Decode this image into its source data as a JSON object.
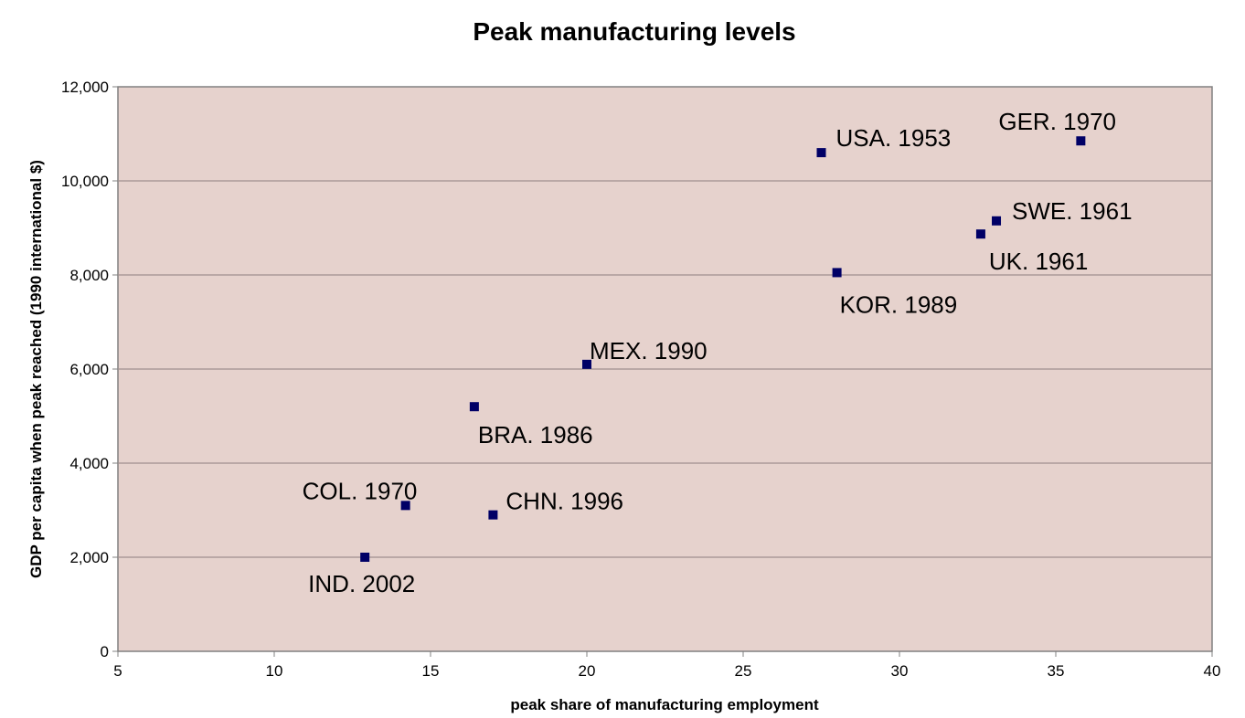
{
  "chart_data": {
    "type": "scatter",
    "title": "Peak manufacturing levels",
    "xlabel": "peak share of manufacturing employment",
    "ylabel": "GDP per capita when peak reached (1990 international $)",
    "xlim": [
      5,
      40
    ],
    "ylim": [
      0,
      12000
    ],
    "x_ticks": [
      "5",
      "10",
      "15",
      "20",
      "25",
      "30",
      "35",
      "40"
    ],
    "y_ticks": [
      "0",
      "2,000",
      "4,000",
      "6,000",
      "8,000",
      "10,000",
      "12,000"
    ],
    "grid": "horizontal",
    "legend": "none",
    "colors": {
      "plot_background": "#E6D2CD",
      "marker": "#000066",
      "grid": "#A09090"
    },
    "points": [
      {
        "label": "IND. 2002",
        "x": 12.9,
        "y": 2000
      },
      {
        "label": "COL. 1970",
        "x": 14.2,
        "y": 3100
      },
      {
        "label": "CHN. 1996",
        "x": 17.0,
        "y": 2900
      },
      {
        "label": "BRA. 1986",
        "x": 16.4,
        "y": 5200
      },
      {
        "label": "MEX. 1990",
        "x": 20.0,
        "y": 6100
      },
      {
        "label": "KOR. 1989",
        "x": 28.0,
        "y": 8050
      },
      {
        "label": "USA. 1953",
        "x": 27.5,
        "y": 10600
      },
      {
        "label": "UK. 1961",
        "x": 32.6,
        "y": 8870
      },
      {
        "label": "SWE. 1961",
        "x": 33.1,
        "y": 9150
      },
      {
        "label": "GER. 1970",
        "x": 35.8,
        "y": 10850
      }
    ]
  }
}
